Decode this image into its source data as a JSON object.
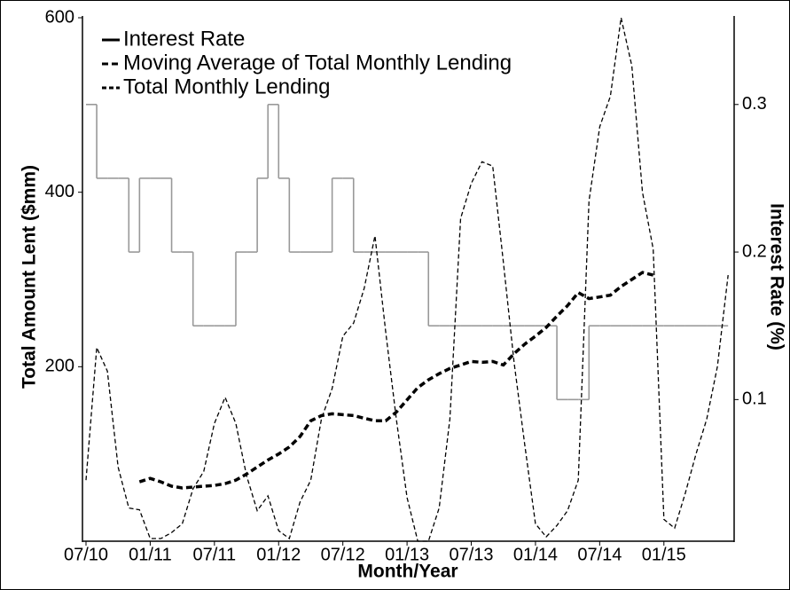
{
  "chart_data": {
    "type": "line",
    "xlabel": "Month/Year",
    "ylabel": "Total Amount Lent ($mm)",
    "y2label": "Interest Rate (%)",
    "x": [
      "07/10",
      "08/10",
      "09/10",
      "10/10",
      "11/10",
      "12/10",
      "01/11",
      "02/11",
      "03/11",
      "04/11",
      "05/11",
      "06/11",
      "07/11",
      "08/11",
      "09/11",
      "10/11",
      "11/11",
      "12/11",
      "01/12",
      "02/12",
      "03/12",
      "04/12",
      "05/12",
      "06/12",
      "07/12",
      "08/12",
      "09/12",
      "10/12",
      "11/12",
      "12/12",
      "01/13",
      "02/13",
      "03/13",
      "04/13",
      "05/13",
      "06/13",
      "07/13",
      "08/13",
      "09/13",
      "10/13",
      "11/13",
      "12/13",
      "01/14",
      "02/14",
      "03/14",
      "04/14",
      "05/14",
      "06/14",
      "07/14",
      "08/14",
      "09/14",
      "10/14",
      "11/14",
      "12/14",
      "01/15",
      "02/15",
      "03/15",
      "04/15",
      "05/15",
      "06/15",
      "07/15"
    ],
    "xticks": [
      "07/10",
      "01/11",
      "07/11",
      "01/12",
      "07/12",
      "01/13",
      "07/13",
      "01/14",
      "07/14",
      "01/15"
    ],
    "ylim": [
      0,
      600
    ],
    "yticks": [
      200,
      400,
      600
    ],
    "y2lim": [
      0.004,
      0.36
    ],
    "y2ticks": [
      0.1,
      0.2,
      0.3
    ],
    "series": [
      {
        "name": "Interest Rate",
        "color": "#999999",
        "axis": "y2",
        "step": true,
        "dash": "",
        "width": 1.6,
        "values": [
          0.3,
          0.25,
          0.25,
          0.25,
          0.2,
          0.25,
          0.25,
          0.25,
          0.2,
          0.2,
          0.15,
          0.15,
          0.15,
          0.15,
          0.2,
          0.2,
          0.25,
          0.3,
          0.25,
          0.2,
          0.2,
          0.2,
          0.2,
          0.25,
          0.25,
          0.2,
          0.2,
          0.2,
          0.2,
          0.2,
          0.2,
          0.2,
          0.15,
          0.15,
          0.15,
          0.15,
          0.15,
          0.15,
          0.15,
          0.15,
          0.15,
          0.15,
          0.15,
          0.15,
          0.1,
          0.1,
          0.1,
          0.15,
          0.15,
          0.15,
          0.15,
          0.15,
          0.15,
          0.15,
          0.15,
          0.15,
          0.15,
          0.15,
          0.15,
          0.15,
          0.15
        ]
      },
      {
        "name": "Moving Average of Total Monthly Lending",
        "color": "#000000",
        "dash": "7 4",
        "width": 3.5,
        "values": [
          null,
          null,
          null,
          null,
          null,
          68,
          72,
          68,
          63,
          61,
          62,
          63,
          64,
          66,
          70,
          77,
          85,
          93,
          100,
          108,
          120,
          138,
          144,
          146,
          145,
          144,
          141,
          138,
          138,
          148,
          162,
          176,
          185,
          192,
          198,
          202,
          206,
          205,
          206,
          202,
          215,
          226,
          235,
          245,
          258,
          270,
          285,
          278,
          280,
          282,
          292,
          300,
          308,
          305,
          null,
          null,
          null,
          null,
          null,
          null,
          null
        ]
      },
      {
        "name": "Total Monthly Lending",
        "color": "#000000",
        "dash": "5 3",
        "width": 1.3,
        "values": [
          70,
          222,
          195,
          85,
          38,
          36,
          3,
          3,
          10,
          20,
          60,
          80,
          135,
          165,
          135,
          75,
          35,
          52,
          12,
          3,
          45,
          70,
          140,
          175,
          235,
          250,
          290,
          350,
          240,
          140,
          50,
          0,
          0,
          38,
          140,
          370,
          410,
          435,
          430,
          320,
          205,
          110,
          20,
          5,
          18,
          35,
          70,
          390,
          475,
          510,
          600,
          545,
          400,
          335,
          25,
          15,
          55,
          100,
          140,
          200,
          305
        ]
      }
    ]
  }
}
